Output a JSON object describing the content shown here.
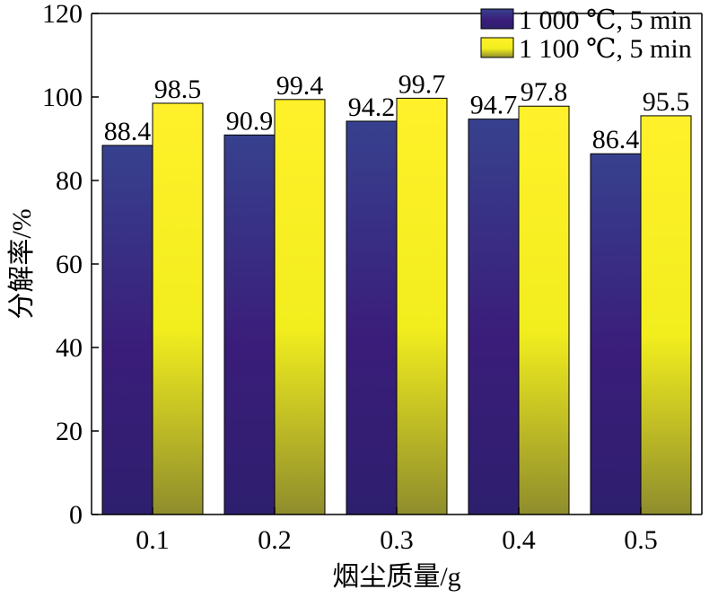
{
  "chart_data": {
    "type": "bar",
    "categories": [
      "0.1",
      "0.2",
      "0.3",
      "0.4",
      "0.5"
    ],
    "series": [
      {
        "name": "1 000 ℃, 5 min",
        "values": [
          88.4,
          90.9,
          94.2,
          94.7,
          86.4
        ],
        "labels": [
          "88.4",
          "90.9",
          "94.2",
          "94.7",
          "86.4"
        ],
        "color_top": "#37418e",
        "color_mid": "#3a1d7a",
        "color_bottom": "#2e1f6e"
      },
      {
        "name": "1 100 ℃, 5 min",
        "values": [
          98.5,
          99.4,
          99.7,
          97.8,
          95.5
        ],
        "labels": [
          "98.5",
          "99.4",
          "99.7",
          "97.8",
          "95.5"
        ],
        "color_top": "#fff02a",
        "color_mid": "#f2ee1e",
        "color_bottom": "#8f8d2c"
      }
    ],
    "xlabel": "烟尘质量/g",
    "ylabel": "分解率/%",
    "ylim": [
      0,
      120
    ],
    "yticks": [
      "0",
      "20",
      "40",
      "60",
      "80",
      "100",
      "120"
    ],
    "grid": false,
    "legend_position": "top-right"
  }
}
